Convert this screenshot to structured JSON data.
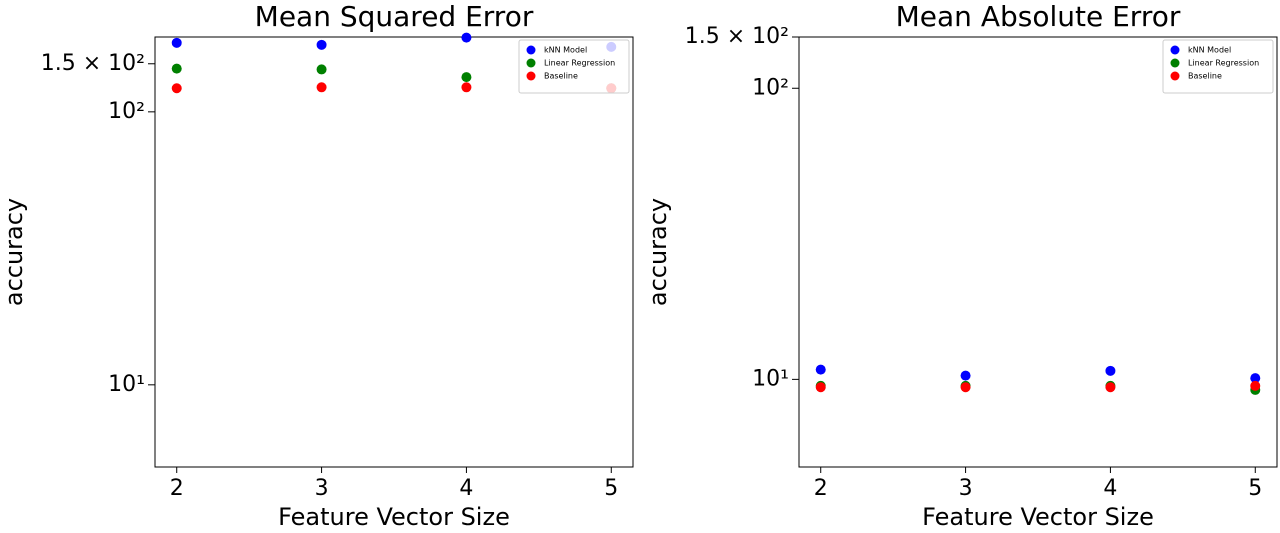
{
  "chart_data": [
    {
      "type": "scatter",
      "title": "Mean Squared Error",
      "xlabel": "Feature Vector Size",
      "ylabel": "accuracy",
      "yscale": "log",
      "legend": "upper right",
      "xlim": [
        1.85,
        5.15
      ],
      "xticks": [
        2,
        3,
        4,
        5
      ],
      "ylim": [
        5,
        188
      ],
      "yticks": [
        {
          "value": 10,
          "label": "10¹"
        },
        {
          "value": 100,
          "label": "10²"
        },
        {
          "value": 150,
          "label": "1.5 × 10²"
        }
      ],
      "x": [
        2,
        3,
        4,
        5
      ],
      "series": [
        {
          "name": "kNN Model",
          "color": "#0000ff",
          "values": [
            179,
            176,
            187,
            173
          ]
        },
        {
          "name": "Linear Regression",
          "color": "#008000",
          "values": [
            144,
            143,
            134,
            122
          ]
        },
        {
          "name": "Baseline",
          "color": "#ff0000",
          "values": [
            122,
            123,
            123,
            122
          ]
        }
      ]
    },
    {
      "type": "scatter",
      "title": "Mean Absolute Error",
      "xlabel": "Feature Vector Size",
      "ylabel": "accuracy",
      "yscale": "log",
      "legend": "upper right",
      "xlim": [
        1.85,
        5.15
      ],
      "xticks": [
        2,
        3,
        4,
        5
      ],
      "ylim": [
        5,
        150
      ],
      "yticks": [
        {
          "value": 10,
          "label": "10¹"
        },
        {
          "value": 100,
          "label": "10²"
        },
        {
          "value": 150,
          "label": "1.5 × 10²"
        }
      ],
      "x": [
        2,
        3,
        4,
        5
      ],
      "series": [
        {
          "name": "kNN Model",
          "color": "#0000ff",
          "values": [
            10.8,
            10.3,
            10.7,
            10.1
          ]
        },
        {
          "name": "Linear Regression",
          "color": "#008000",
          "values": [
            9.5,
            9.5,
            9.5,
            9.2
          ]
        },
        {
          "name": "Baseline",
          "color": "#ff0000",
          "values": [
            9.4,
            9.4,
            9.4,
            9.5
          ]
        }
      ]
    }
  ]
}
